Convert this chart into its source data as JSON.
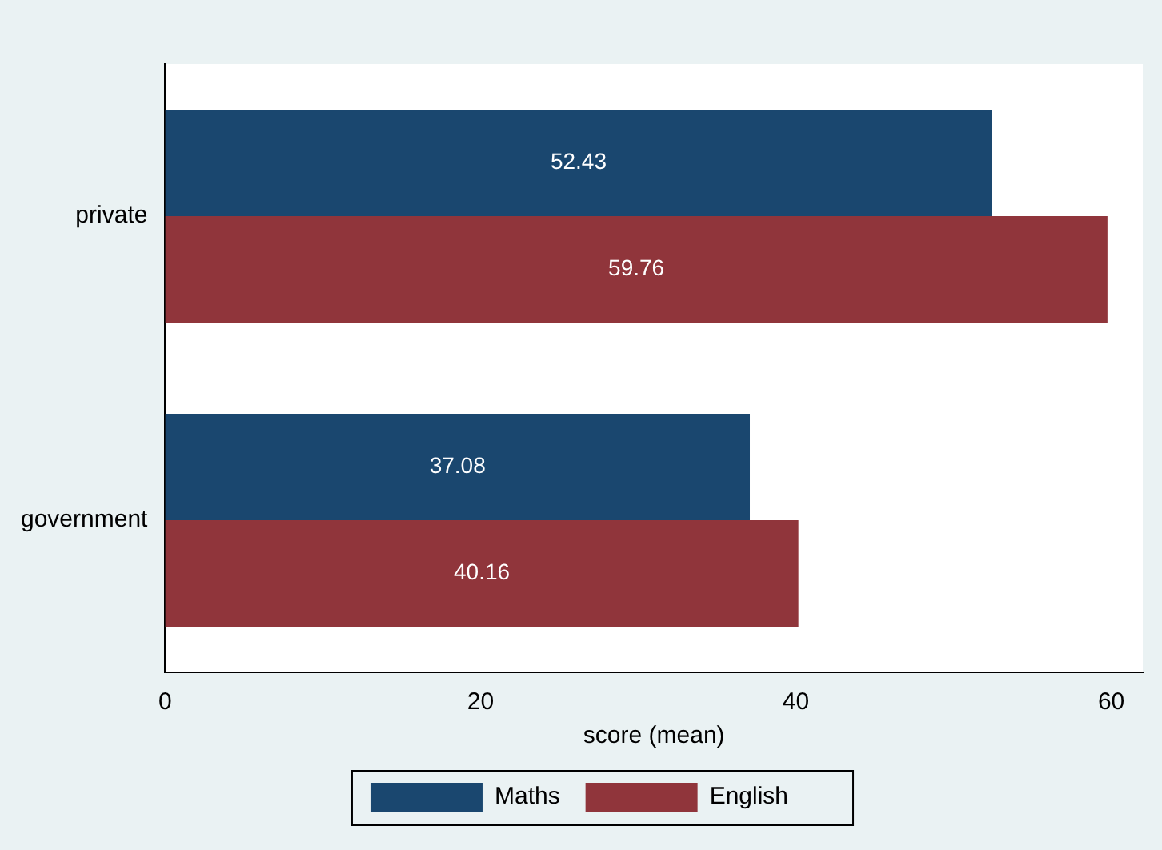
{
  "chart_data": {
    "type": "bar",
    "orientation": "horizontal",
    "xlabel": "score (mean)",
    "categories": [
      "private",
      "government"
    ],
    "series": [
      {
        "name": "Maths",
        "color": "#1a476f",
        "values": [
          52.43,
          37.08
        ]
      },
      {
        "name": "English",
        "color": "#90353b",
        "values": [
          59.76,
          40.16
        ]
      }
    ],
    "xlim": [
      0,
      62
    ],
    "xticks": [
      0,
      20,
      40,
      60
    ],
    "grid": false,
    "legend": "bottom",
    "data_labels": true
  }
}
